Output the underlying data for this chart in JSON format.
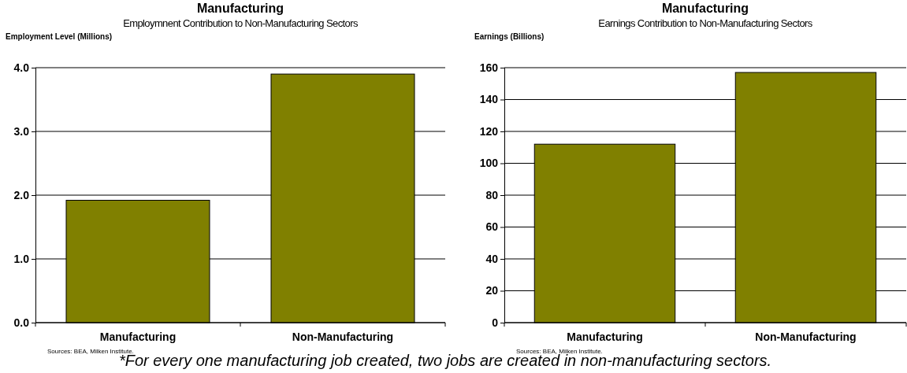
{
  "chart_data": [
    {
      "type": "bar",
      "title": "Manufacturing",
      "subtitle": "Employmnent Contribution to Non-Manufacturing Sectors",
      "ylabel": "Employment Level (Millions)",
      "categories": [
        "Manufacturing",
        "Non-Manufacturing"
      ],
      "values": [
        1.92,
        3.9
      ],
      "color": "#808000",
      "ylim": [
        0,
        4
      ],
      "yticks": [
        {
          "value": 0,
          "label": "0.0"
        },
        {
          "value": 1,
          "label": "1.0"
        },
        {
          "value": 2,
          "label": "2.0"
        },
        {
          "value": 3,
          "label": "3.0"
        },
        {
          "value": 4,
          "label": "4.0"
        }
      ],
      "grid": "y",
      "annotations": [
        "Sources: BEA, Milken Institute.",
        "*For every one manufacturing job created, two jobs are created in non-manufacturing sectors."
      ]
    },
    {
      "type": "bar",
      "title": "Manufacturing",
      "subtitle": "Earnings Contribution to Non-Manufacturing Sectors",
      "ylabel": "Earnings (Billions)",
      "categories": [
        "Manufacturing",
        "Non-Manufacturing"
      ],
      "values": [
        112,
        157
      ],
      "color": "#808000",
      "ylim": [
        0,
        160
      ],
      "yticks": [
        0,
        20,
        40,
        60,
        80,
        100,
        120,
        140,
        160
      ],
      "grid": "y",
      "annotations": [
        "Sources: BEA, Milken Institute."
      ]
    }
  ]
}
